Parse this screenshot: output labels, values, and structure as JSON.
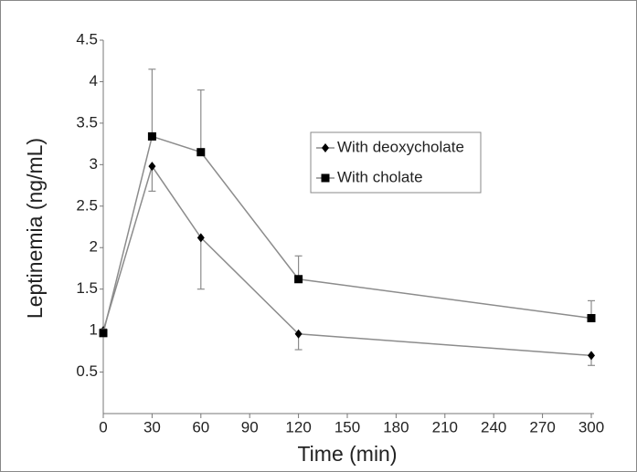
{
  "chart_data": {
    "type": "line",
    "x_label": "Time (min)",
    "y_label": "Leptinemia (ng/mL)",
    "xlim": [
      0,
      300
    ],
    "xticks": [
      0,
      30,
      60,
      90,
      120,
      150,
      180,
      210,
      240,
      270,
      300
    ],
    "ylim": [
      0,
      4.5
    ],
    "yticks": [
      0.5,
      1,
      1.5,
      2,
      2.5,
      3,
      3.5,
      4,
      4.5
    ],
    "x": [
      0,
      30,
      60,
      120,
      300
    ],
    "line_color": "#8c8c8c",
    "legend": "upper right",
    "series": [
      {
        "name": "With deoxycholate",
        "color": "#000000",
        "marker": "diamond",
        "error_direction": "down",
        "values": [
          1.0,
          2.98,
          2.12,
          0.96,
          0.7
        ],
        "errors": [
          0.05,
          0.3,
          0.62,
          0.19,
          0.12
        ]
      },
      {
        "name": "With cholate",
        "color": "#000000",
        "marker": "square",
        "error_direction": "up",
        "values": [
          0.97,
          3.34,
          3.15,
          1.62,
          1.15
        ],
        "errors": [
          0.05,
          0.81,
          0.75,
          0.28,
          0.21
        ]
      }
    ]
  }
}
